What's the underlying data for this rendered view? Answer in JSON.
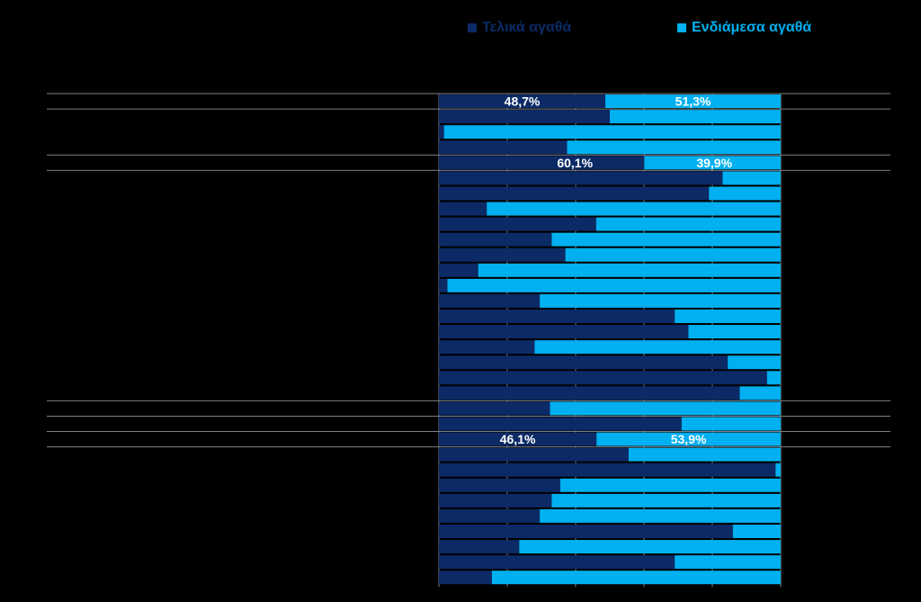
{
  "colors": {
    "final": "#0b2a66",
    "intermediate": "#00b0f0",
    "background": "#000000",
    "grid": "#7f7f7f",
    "label": "#ffffff"
  },
  "chart_data": {
    "type": "bar",
    "orientation": "horizontal",
    "stacked": "percent",
    "xlim": [
      0,
      100
    ],
    "gridlines": "vertical, every 20%",
    "legend_position": "top",
    "series": [
      {
        "name": "Τελικά αγαθά",
        "color": "#0b2a66",
        "values": [
          48.7,
          50,
          1.5,
          37.5,
          60.1,
          83,
          79,
          14,
          46,
          33,
          37,
          11.5,
          2.5,
          29.5,
          69,
          73,
          28,
          84.5,
          96,
          88,
          32.5,
          71,
          46.1,
          55.5,
          98.5,
          35.5,
          33,
          29.5,
          86,
          23.5,
          69,
          15.5
        ]
      },
      {
        "name": "Ενδιάμεσα αγαθά",
        "color": "#00b0f0",
        "values": [
          51.3,
          50,
          98.5,
          62.5,
          39.9,
          17,
          21,
          86,
          54,
          67,
          63,
          88.5,
          97.5,
          70.5,
          31,
          27,
          72,
          15.5,
          4,
          12,
          67.5,
          29,
          53.9,
          44.5,
          1.5,
          64.5,
          67,
          70.5,
          14,
          76.5,
          31,
          84.5
        ]
      }
    ],
    "data_labels": [
      {
        "row": 0,
        "final": "48,7%",
        "intermediate": "51,3%"
      },
      {
        "row": 4,
        "final": "60,1%",
        "intermediate": "39,9%"
      },
      {
        "row": 22,
        "final": "46,1%",
        "intermediate": "53,9%"
      }
    ],
    "group_separator_rows": [
      0,
      4,
      20,
      22
    ]
  }
}
